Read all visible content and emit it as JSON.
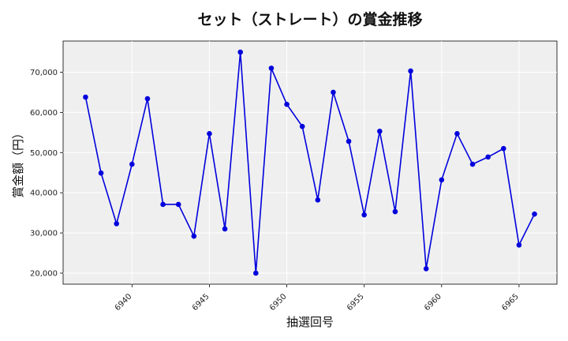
{
  "chart_data": {
    "type": "line",
    "title": "セット（ストレート）の賞金推移",
    "xlabel": "抽選回号",
    "ylabel": "賞金額（円）",
    "x": [
      6937,
      6938,
      6939,
      6940,
      6941,
      6942,
      6943,
      6944,
      6945,
      6946,
      6947,
      6948,
      6949,
      6950,
      6951,
      6952,
      6953,
      6954,
      6955,
      6956,
      6957,
      6958,
      6959,
      6960,
      6961,
      6962,
      6963,
      6964,
      6965,
      6966
    ],
    "series": [
      {
        "values": [
          63800,
          44900,
          32300,
          47100,
          63400,
          37100,
          37100,
          29200,
          54700,
          31000,
          75000,
          20000,
          71000,
          62000,
          56500,
          38200,
          65000,
          52800,
          34500,
          55300,
          35300,
          70300,
          21100,
          43200,
          54700,
          47100,
          48900,
          51000,
          27000,
          34700
        ],
        "color": "#0000dd"
      }
    ],
    "xlim": [
      6935.55,
      6967.45
    ],
    "ylim": [
      17250,
      77750
    ],
    "xticks": [
      6940,
      6945,
      6950,
      6955,
      6960,
      6965
    ],
    "xtick_labels": [
      "6940",
      "6945",
      "6950",
      "6955",
      "6960",
      "6965"
    ],
    "yticks": [
      20000,
      30000,
      40000,
      50000,
      60000,
      70000
    ],
    "ytick_labels": [
      "20,000",
      "30,000",
      "40,000",
      "50,000",
      "60,000",
      "70,000"
    ],
    "grid": true,
    "background": "#efefef"
  }
}
